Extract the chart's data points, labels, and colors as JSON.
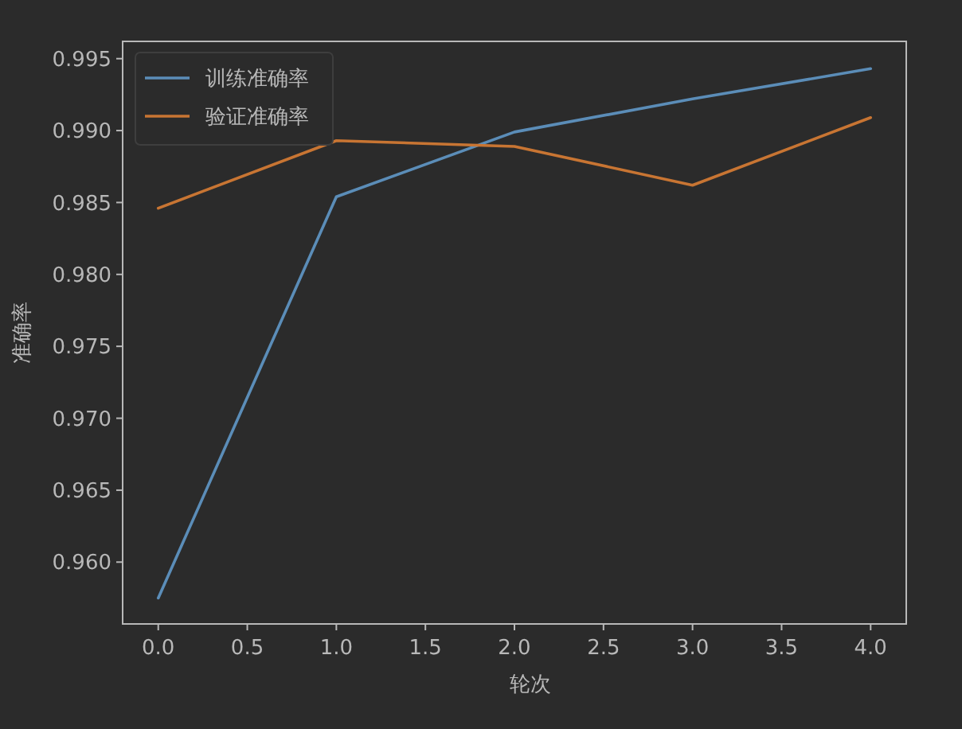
{
  "chart_data": {
    "type": "line",
    "xlabel": "轮次",
    "ylabel": "准确率",
    "x": [
      0,
      1,
      2,
      3,
      4
    ],
    "series": [
      {
        "name": "训练准确率",
        "color": "#5b8db8",
        "values": [
          0.9575,
          0.9854,
          0.9899,
          0.9922,
          0.9943
        ]
      },
      {
        "name": "验证准确率",
        "color": "#c87533",
        "values": [
          0.9846,
          0.9893,
          0.9889,
          0.9862,
          0.9909
        ]
      }
    ],
    "xlim": [
      -0.2,
      4.2
    ],
    "xticks": [
      {
        "value": 0,
        "label": "0.0"
      },
      {
        "value": 0.5,
        "label": "0.5"
      },
      {
        "value": 1,
        "label": "1.0"
      },
      {
        "value": 1.5,
        "label": "1.5"
      },
      {
        "value": 2,
        "label": "2.0"
      },
      {
        "value": 2.5,
        "label": "2.5"
      },
      {
        "value": 3,
        "label": "3.0"
      },
      {
        "value": 3.5,
        "label": "3.5"
      },
      {
        "value": 4,
        "label": "4.0"
      }
    ],
    "ylim": [
      0.9557,
      0.9962
    ],
    "yticks": [
      {
        "value": 0.96,
        "label": "0.960"
      },
      0.965,
      {
        "value": 0.97,
        "label": "0.970"
      },
      0.975,
      {
        "value": 0.98,
        "label": "0.980"
      },
      0.985,
      {
        "value": 0.99,
        "label": "0.990"
      },
      0.995
    ],
    "grid": false,
    "legend": "top left",
    "marker": "none",
    "line_style": "solid"
  }
}
